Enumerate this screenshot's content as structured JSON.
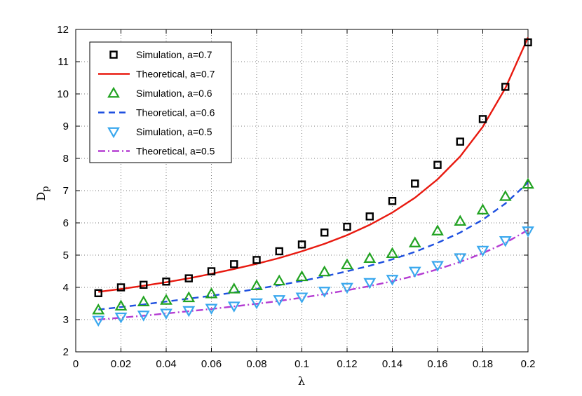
{
  "chart_data": {
    "type": "line",
    "xlabel": "λ",
    "ylabel_main": "D",
    "ylabel_sub": "p",
    "xlim": [
      0,
      0.2
    ],
    "ylim": [
      2,
      12
    ],
    "xticks": [
      0,
      0.02,
      0.04,
      0.06,
      0.08,
      0.1,
      0.12,
      0.14,
      0.16,
      0.18,
      0.2
    ],
    "xtick_labels": [
      "0",
      "0.02",
      "0.04",
      "0.06",
      "0.08",
      "0.1",
      "0.12",
      "0.14",
      "0.16",
      "0.18",
      "0.2"
    ],
    "yticks": [
      2,
      3,
      4,
      5,
      6,
      7,
      8,
      9,
      10,
      11,
      12
    ],
    "ytick_labels": [
      "2",
      "3",
      "4",
      "5",
      "6",
      "7",
      "8",
      "9",
      "10",
      "11",
      "12"
    ],
    "grid": true,
    "legend_position": "top-left",
    "x": [
      0.01,
      0.02,
      0.03,
      0.04,
      0.05,
      0.06,
      0.07,
      0.08,
      0.09,
      0.1,
      0.11,
      0.12,
      0.13,
      0.14,
      0.15,
      0.16,
      0.17,
      0.18,
      0.19,
      0.2
    ],
    "series": [
      {
        "name": "Simulation, a=0.7",
        "kind": "marker",
        "marker": "square",
        "color": "#000000",
        "values": [
          3.82,
          4.0,
          4.08,
          4.18,
          4.28,
          4.5,
          4.72,
          4.85,
          5.12,
          5.33,
          5.7,
          5.88,
          6.2,
          6.68,
          7.22,
          7.8,
          8.52,
          9.22,
          10.22,
          11.6
        ]
      },
      {
        "name": "Theoretical, a=0.7",
        "kind": "line",
        "dash": "solid",
        "color": "#e8190f",
        "values": [
          3.86,
          3.95,
          4.05,
          4.16,
          4.28,
          4.42,
          4.57,
          4.73,
          4.91,
          5.12,
          5.35,
          5.62,
          5.94,
          6.32,
          6.78,
          7.35,
          8.06,
          8.98,
          10.18,
          11.75
        ]
      },
      {
        "name": "Simulation, a=0.6",
        "kind": "marker",
        "marker": "triangle-up",
        "color": "#22a322",
        "values": [
          3.3,
          3.42,
          3.55,
          3.6,
          3.68,
          3.8,
          3.95,
          4.05,
          4.2,
          4.33,
          4.48,
          4.7,
          4.9,
          5.05,
          5.38,
          5.75,
          6.05,
          6.4,
          6.82,
          7.2
        ]
      },
      {
        "name": "Theoretical, a=0.6",
        "kind": "line",
        "dash": "dashed",
        "color": "#1e50e0",
        "values": [
          3.31,
          3.39,
          3.47,
          3.56,
          3.65,
          3.74,
          3.84,
          3.95,
          4.07,
          4.2,
          4.34,
          4.5,
          4.67,
          4.87,
          5.1,
          5.38,
          5.7,
          6.1,
          6.6,
          7.25
        ]
      },
      {
        "name": "Simulation, a=0.5",
        "kind": "marker",
        "marker": "triangle-down",
        "color": "#3aa8ee",
        "values": [
          2.98,
          3.08,
          3.14,
          3.2,
          3.28,
          3.35,
          3.42,
          3.52,
          3.62,
          3.7,
          3.88,
          4.0,
          4.15,
          4.25,
          4.5,
          4.68,
          4.92,
          5.15,
          5.45,
          5.75
        ]
      },
      {
        "name": "Theoretical, a=0.5",
        "kind": "line",
        "dash": "dashdot",
        "color": "#b43cd2",
        "values": [
          3.0,
          3.06,
          3.12,
          3.19,
          3.26,
          3.33,
          3.41,
          3.49,
          3.58,
          3.68,
          3.79,
          3.91,
          4.04,
          4.19,
          4.36,
          4.56,
          4.79,
          5.06,
          5.38,
          5.78
        ]
      }
    ]
  }
}
